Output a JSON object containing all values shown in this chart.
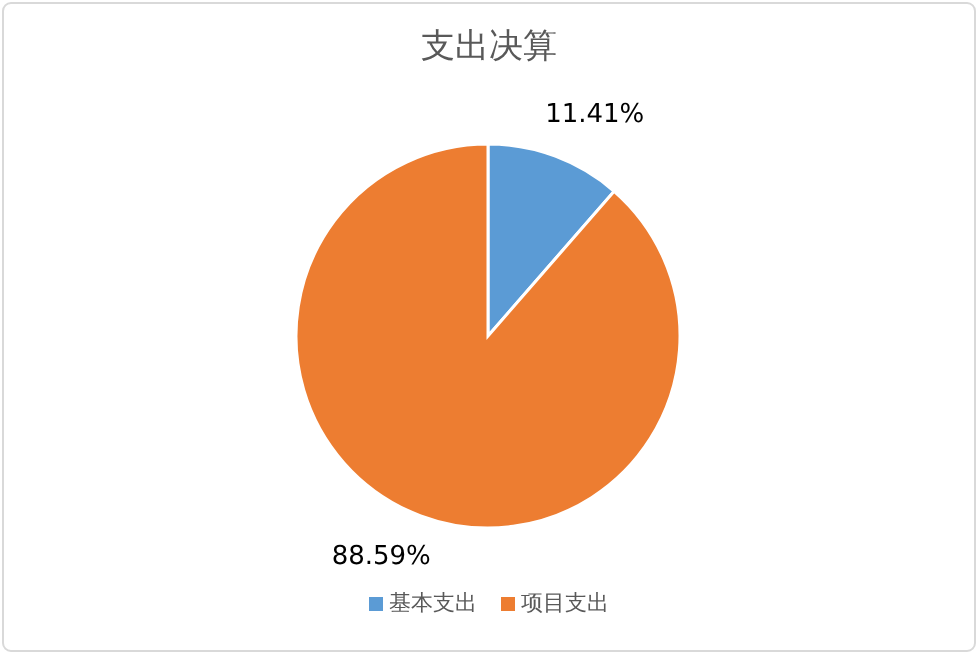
{
  "chart_data": {
    "type": "pie",
    "title": "支出决算",
    "categories": [
      "基本支出",
      "项目支出"
    ],
    "values": [
      11.41,
      88.59
    ],
    "colors": [
      "#5b9bd5",
      "#ed7d31"
    ],
    "value_labels": [
      "11.41%",
      "88.59%"
    ],
    "legend": "bottom"
  }
}
